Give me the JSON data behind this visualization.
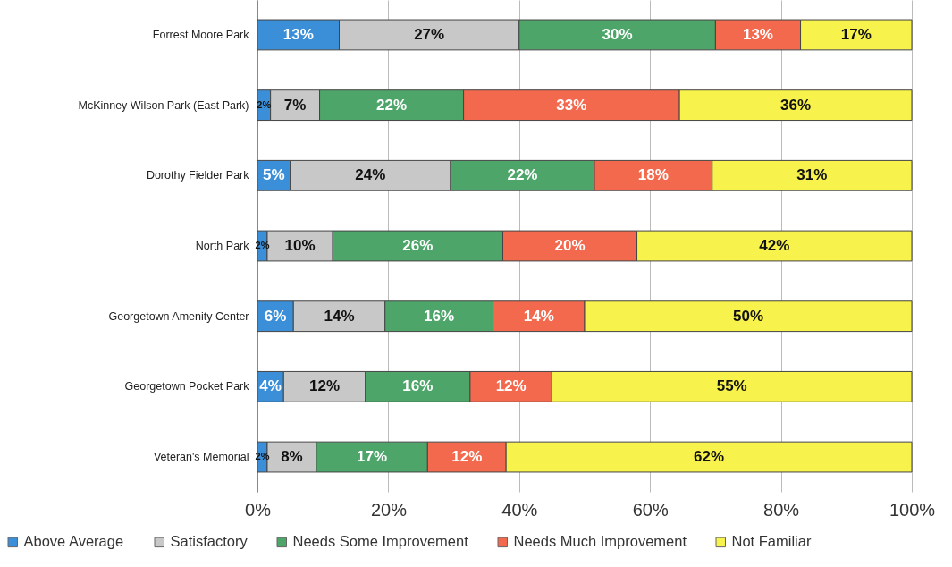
{
  "chart_data": {
    "type": "bar",
    "orientation": "horizontal",
    "stacked": true,
    "categories": [
      "Forrest Moore Park",
      "McKinney Wilson Park (East Park)",
      "Dorothy Fielder Park",
      "North Park",
      "Georgetown Amenity Center",
      "Georgetown Pocket Park",
      "Veteran's Memorial"
    ],
    "series": [
      {
        "name": "Above Average",
        "color": "#3a8fd8",
        "values": [
          12.5,
          2,
          5,
          1.5,
          5.5,
          4,
          1.5
        ],
        "value_labels": [
          "13%",
          "2%",
          "5%",
          "2%",
          "6%",
          "4%",
          "2%"
        ]
      },
      {
        "name": "Satisfactory",
        "color": "#c8c8c8",
        "values": [
          27.5,
          7.5,
          24.5,
          10,
          14,
          12.5,
          7.5
        ],
        "value_labels": [
          "27%",
          "7%",
          "24%",
          "10%",
          "14%",
          "12%",
          "8%"
        ]
      },
      {
        "name": "Needs Some Improvement",
        "color": "#4ea56a",
        "values": [
          30,
          22,
          22,
          26,
          16.5,
          16,
          17
        ],
        "value_labels": [
          "30%",
          "22%",
          "22%",
          "26%",
          "16%",
          "16%",
          "17%"
        ]
      },
      {
        "name": "Needs Much Improvement",
        "color": "#f2694e",
        "values": [
          13,
          33,
          18,
          20.5,
          14,
          12.5,
          12
        ],
        "value_labels": [
          "13%",
          "33%",
          "18%",
          "20%",
          "14%",
          "12%",
          "12%"
        ]
      },
      {
        "name": "Not Familiar",
        "color": "#f8f24c",
        "values": [
          17,
          35.5,
          30.5,
          42,
          50,
          55,
          62
        ],
        "value_labels": [
          "17%",
          "36%",
          "31%",
          "42%",
          "50%",
          "55%",
          "62%"
        ]
      }
    ],
    "xlim": [
      0,
      100
    ],
    "xticks": [
      {
        "value": 0,
        "label": "0%"
      },
      {
        "value": 20,
        "label": "20%"
      },
      {
        "value": 40,
        "label": "40%"
      },
      {
        "value": 60,
        "label": "60%"
      },
      {
        "value": 80,
        "label": "80%"
      },
      {
        "value": 100,
        "label": "100%"
      }
    ],
    "grid": "x",
    "legend": "bottom"
  }
}
